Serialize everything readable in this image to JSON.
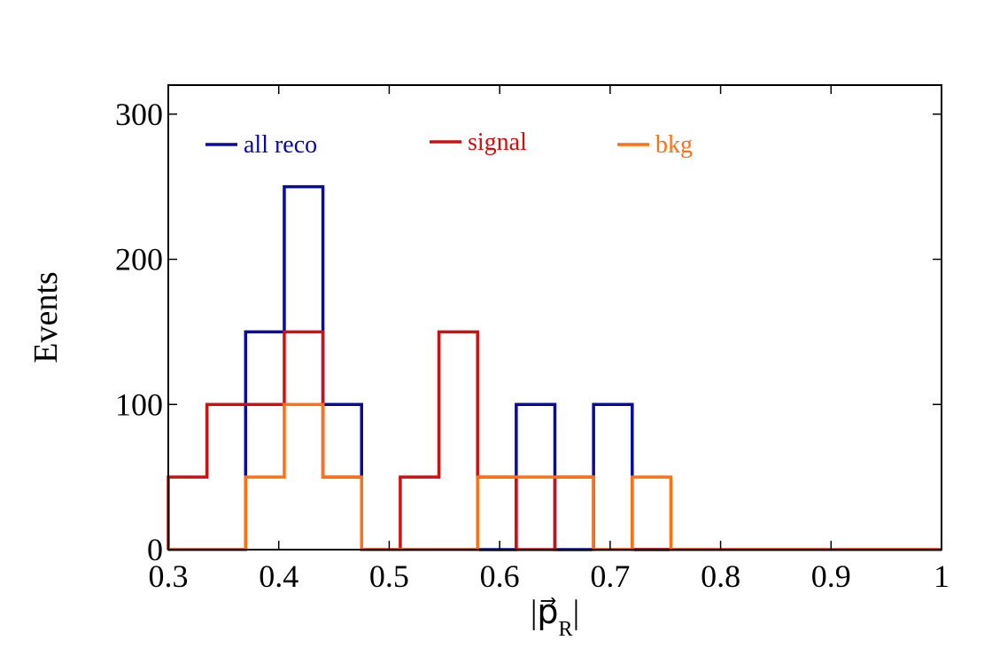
{
  "chart_data": {
    "type": "histogram",
    "xlabel": "|p⃗R|",
    "xlabel_parts": {
      "main": "|p⃗",
      "sub": "R",
      "end": "|"
    },
    "ylabel": "Events",
    "xlim": [
      0.3,
      1.0
    ],
    "ylim": [
      0,
      320
    ],
    "xticks": [
      0.3,
      0.4,
      0.5,
      0.6,
      0.7,
      0.8,
      0.9,
      1.0
    ],
    "xtick_labels": [
      "0.3",
      "0.4",
      "0.5",
      "0.6",
      "0.7",
      "0.8",
      "0.9",
      "1"
    ],
    "yticks": [
      0,
      100,
      200,
      300
    ],
    "ytick_labels": [
      "0",
      "100",
      "200",
      "300"
    ],
    "grid": false,
    "legend_position": "top, horizontal",
    "bin_edges": [
      0.3,
      0.335,
      0.37,
      0.405,
      0.44,
      0.475,
      0.51,
      0.545,
      0.58,
      0.615,
      0.65,
      0.685,
      0.72,
      0.755,
      0.79,
      0.825,
      0.86,
      0.895,
      0.93,
      0.965,
      1.0
    ],
    "series": [
      {
        "name": "all reco",
        "color": "#0a0aa0",
        "values": [
          0,
          0,
          150,
          250,
          100,
          0,
          0,
          0,
          0,
          100,
          0,
          100,
          0,
          0,
          0,
          0,
          0,
          0,
          0,
          0
        ]
      },
      {
        "name": "signal",
        "color": "#d01010",
        "values": [
          50,
          100,
          100,
          150,
          50,
          0,
          50,
          150,
          50,
          0,
          50,
          0,
          0,
          0,
          0,
          0,
          0,
          0,
          0,
          0
        ]
      },
      {
        "name": "bkg",
        "color": "#ff7010",
        "values": [
          0,
          0,
          50,
          100,
          50,
          0,
          0,
          0,
          50,
          50,
          50,
          0,
          50,
          0,
          0,
          0,
          0,
          0,
          0,
          0
        ]
      }
    ]
  }
}
